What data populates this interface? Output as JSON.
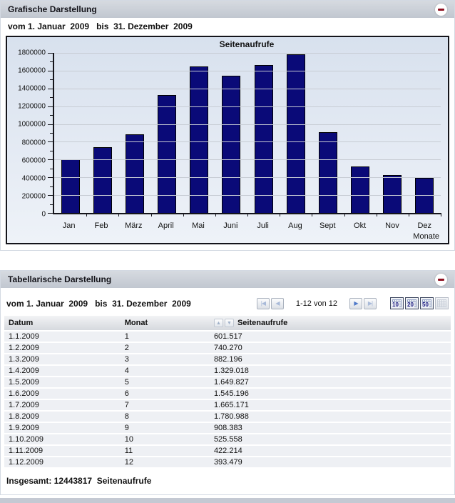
{
  "chart_panel": {
    "title": "Grafische Darstellung",
    "date_range": "vom 1. Januar  2009   bis  31. Dezember  2009"
  },
  "chart_data": {
    "type": "bar",
    "title": "Seitenaufrufe",
    "categories": [
      "Jan",
      "Feb",
      "März",
      "April",
      "Mai",
      "Juni",
      "Juli",
      "Aug",
      "Sept",
      "Okt",
      "Nov",
      "Dez"
    ],
    "values": [
      601517,
      740270,
      882196,
      1329018,
      1649827,
      1545196,
      1665171,
      1780988,
      908383,
      525558,
      422214,
      393479
    ],
    "xlabel": "Monate",
    "ylabel": "",
    "ylim": [
      0,
      1800000
    ],
    "ytick_step": 200000,
    "minor_tick_step": 100000,
    "grid": true,
    "legend": false,
    "bar_color": "#0a0a78"
  },
  "table_panel": {
    "title": "Tabellarische Darstellung",
    "date_range": "vom 1. Januar  2009   bis  31. Dezember  2009",
    "pagination": {
      "first_icon": "first-page-icon",
      "prev_icon": "previous-page-icon",
      "range_text": "1-12 von 12",
      "next_icon": "next-page-icon",
      "last_icon": "last-page-icon",
      "page_sizes": [
        "10",
        "20",
        "50"
      ],
      "page_size_all_icon": "all-rows-icon"
    },
    "table": {
      "columns": [
        "Datum",
        "Monat",
        "Seitenaufrufe"
      ],
      "rows": [
        [
          "1.1.2009",
          "1",
          "601.517"
        ],
        [
          "1.2.2009",
          "2",
          "740.270"
        ],
        [
          "1.3.2009",
          "3",
          "882.196"
        ],
        [
          "1.4.2009",
          "4",
          "1.329.018"
        ],
        [
          "1.5.2009",
          "5",
          "1.649.827"
        ],
        [
          "1.6.2009",
          "6",
          "1.545.196"
        ],
        [
          "1.7.2009",
          "7",
          "1.665.171"
        ],
        [
          "1.8.2009",
          "8",
          "1.780.988"
        ],
        [
          "1.9.2009",
          "9",
          "908.383"
        ],
        [
          "1.10.2009",
          "10",
          "525.558"
        ],
        [
          "1.11.2009",
          "11",
          "422.214"
        ],
        [
          "1.12.2009",
          "12",
          "393.479"
        ]
      ]
    },
    "footer": "Insgesamt: 12443817  Seitenaufrufe"
  }
}
